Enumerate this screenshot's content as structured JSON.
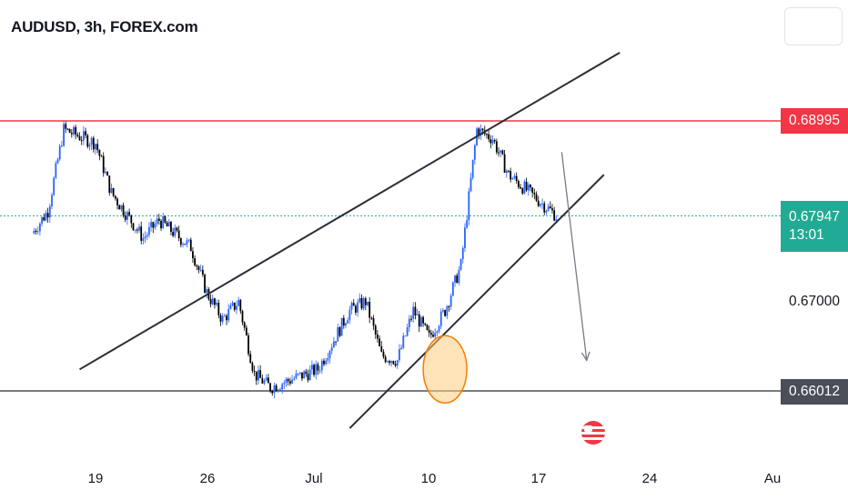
{
  "header": {
    "title": "AUDUSD, 3h, FOREX.com"
  },
  "price_axis": {
    "resistance_label": "0.68995",
    "current_price_label": "0.67947",
    "countdown_label": "13:01",
    "mid_label": "0.67000",
    "support_label": "0.66012"
  },
  "time_axis": {
    "labels": [
      "19",
      "26",
      "Jul",
      "10",
      "17",
      "24",
      "Au"
    ]
  },
  "colors": {
    "up_candle": "#2962ff",
    "down_candle": "#000000",
    "resistance": "#f23645",
    "support": "#4a4e59",
    "current_price": "#22ab94",
    "highlight_fill": "#ffcc80",
    "highlight_stroke": "#f57c00"
  },
  "icons": {
    "event_marker": "us-flag-icon",
    "chart_settings": "settings-icon"
  },
  "chart_data": {
    "type": "candlestick",
    "symbol": "AUDUSD",
    "interval": "3h",
    "source": "FOREX.com",
    "ylim": [
      0.6565,
      0.6935
    ],
    "x_ticks": [
      "19",
      "26",
      "Jul",
      "10",
      "17",
      "24",
      "Au"
    ],
    "y_ticks": [
      0.67
    ],
    "levels": {
      "resistance": 0.68995,
      "support": 0.66012,
      "current": 0.67947
    },
    "price_path_keypoints": [
      [
        "Jun 15",
        0.6775
      ],
      [
        "Jun 16",
        0.68
      ],
      [
        "Jun 17",
        0.689
      ],
      [
        "Jun 19",
        0.6875
      ],
      [
        "Jun 20",
        0.682
      ],
      [
        "Jun 22",
        0.677
      ],
      [
        "Jun 23",
        0.679
      ],
      [
        "Jun 25",
        0.676
      ],
      [
        "Jun 26",
        0.671
      ],
      [
        "Jun 27",
        0.668
      ],
      [
        "Jun 28",
        0.67
      ],
      [
        "Jun 29",
        0.662
      ],
      [
        "Jun 30",
        0.6605
      ],
      [
        "Jul 3",
        0.6625
      ],
      [
        "Jul 5",
        0.669
      ],
      [
        "Jul 6",
        0.67
      ],
      [
        "Jul 7",
        0.664
      ],
      [
        "Jul 8",
        0.6635
      ],
      [
        "Jul 9",
        0.669
      ],
      [
        "Jul 10",
        0.666
      ],
      [
        "Jul 11",
        0.669
      ],
      [
        "Jul 12",
        0.674
      ],
      [
        "Jul 13",
        0.689
      ],
      [
        "Jul 14",
        0.688
      ],
      [
        "Jul 15",
        0.684
      ],
      [
        "Jul 16",
        0.6825
      ],
      [
        "Jul 17",
        0.681
      ],
      [
        "Jul 18",
        0.6795
      ]
    ],
    "annotations": [
      {
        "type": "channel-line",
        "from": [
          "Jun 18",
          0.6625
        ],
        "to": [
          "Jul 22",
          0.6975
        ]
      },
      {
        "type": "channel-line",
        "from": [
          "Jul 5",
          0.656
        ],
        "to": [
          "Jul 21",
          0.684
        ]
      },
      {
        "type": "highlight-circle",
        "at": [
          "Jul 11",
          0.6625
        ]
      },
      {
        "type": "projection-arrow",
        "from": [
          "Jul 18",
          0.6865
        ],
        "to": [
          "Jul 19",
          0.6635
        ]
      }
    ]
  }
}
